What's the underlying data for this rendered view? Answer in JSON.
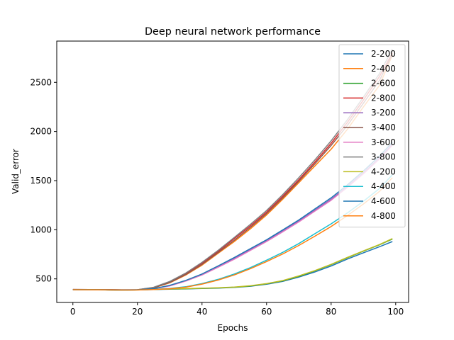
{
  "chart_data": {
    "type": "line",
    "title": "Deep neural network performance",
    "xlabel": "Epochs",
    "ylabel": "Valid_error",
    "xlim": [
      -5,
      104
    ],
    "ylim": [
      260,
      2920
    ],
    "xticks": [
      0,
      20,
      40,
      60,
      80,
      100
    ],
    "yticks": [
      500,
      1000,
      1500,
      2000,
      2500
    ],
    "grid": false,
    "legend_position": "top-right",
    "x": [
      0,
      5,
      10,
      15,
      20,
      25,
      30,
      35,
      40,
      45,
      50,
      55,
      60,
      65,
      70,
      75,
      80,
      85,
      90,
      95,
      99
    ],
    "series": [
      {
        "name": "2-200",
        "color": "#1f77b4",
        "values": [
          390,
          389,
          388,
          386,
          388,
          391,
          395,
          398,
          402,
          406,
          413,
          425,
          445,
          474,
          519,
          571,
          631,
          701,
          765,
          827,
          880
        ]
      },
      {
        "name": "2-400",
        "color": "#ff7f0e",
        "values": [
          391,
          390,
          388,
          385,
          388,
          408,
          460,
          540,
          640,
          760,
          880,
          1010,
          1150,
          1310,
          1480,
          1650,
          1820,
          2020,
          2250,
          2470,
          2780
        ]
      },
      {
        "name": "2-600",
        "color": "#2ca02c",
        "values": [
          392,
          391,
          389,
          387,
          389,
          393,
          397,
          400,
          404,
          408,
          415,
          428,
          450,
          480,
          527,
          582,
          645,
          715,
          782,
          847,
          905
        ]
      },
      {
        "name": "2-800",
        "color": "#d62728",
        "values": [
          393,
          392,
          391,
          389,
          390,
          412,
          470,
          555,
          660,
          780,
          910,
          1040,
          1180,
          1340,
          1510,
          1690,
          1880,
          2090,
          2320,
          2560,
          2800
        ]
      },
      {
        "name": "3-200",
        "color": "#9467bd",
        "values": [
          390,
          389,
          388,
          386,
          388,
          400,
          432,
          482,
          545,
          625,
          710,
          800,
          890,
          990,
          1090,
          1200,
          1310,
          1440,
          1580,
          1730,
          1870
        ]
      },
      {
        "name": "3-400",
        "color": "#8c564b",
        "values": [
          392,
          391,
          390,
          388,
          389,
          409,
          463,
          545,
          648,
          768,
          893,
          1025,
          1165,
          1325,
          1495,
          1672,
          1858,
          2060,
          2288,
          2520,
          2790
        ]
      },
      {
        "name": "3-600",
        "color": "#e377c2",
        "values": [
          391,
          390,
          389,
          387,
          388,
          399,
          428,
          478,
          540,
          618,
          700,
          790,
          880,
          978,
          1080,
          1190,
          1300,
          1430,
          1570,
          1720,
          1860
        ]
      },
      {
        "name": "3-800",
        "color": "#7f7f7f",
        "values": [
          393,
          392,
          391,
          389,
          390,
          414,
          474,
          560,
          668,
          790,
          922,
          1055,
          1196,
          1357,
          1530,
          1712,
          1905,
          2118,
          2350,
          2590,
          2840
        ]
      },
      {
        "name": "4-200",
        "color": "#bcbd22",
        "values": [
          391,
          390,
          388,
          386,
          388,
          394,
          398,
          401,
          405,
          409,
          417,
          430,
          452,
          483,
          530,
          585,
          648,
          718,
          785,
          850,
          910
        ]
      },
      {
        "name": "4-400",
        "color": "#17becf",
        "values": [
          390,
          389,
          387,
          385,
          387,
          393,
          403,
          420,
          452,
          495,
          550,
          615,
          690,
          770,
          860,
          960,
          1060,
          1170,
          1290,
          1420,
          1560
        ]
      },
      {
        "name": "4-600",
        "color": "#1f77b4",
        "values": [
          391,
          390,
          389,
          387,
          389,
          400,
          434,
          485,
          550,
          632,
          718,
          808,
          898,
          998,
          1100,
          1212,
          1325,
          1455,
          1598,
          1750,
          1890
        ]
      },
      {
        "name": "4-800",
        "color": "#ff7f0e",
        "values": [
          390,
          389,
          388,
          386,
          387,
          392,
          400,
          416,
          447,
          488,
          540,
          604,
          676,
          753,
          840,
          935,
          1033,
          1143,
          1262,
          1390,
          1530
        ]
      }
    ]
  }
}
